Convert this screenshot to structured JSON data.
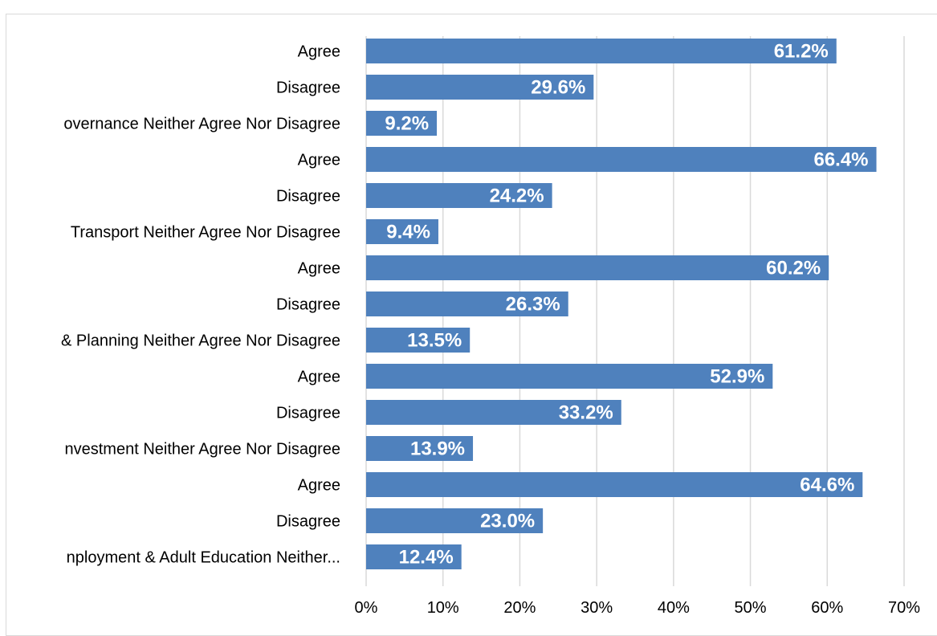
{
  "chart_data": {
    "type": "bar",
    "orientation": "horizontal",
    "categories": [
      "Agree",
      "Disagree",
      "overnance Neither Agree Nor Disagree",
      "Agree",
      "Disagree",
      "Transport Neither Agree Nor Disagree",
      "Agree",
      "Disagree",
      "& Planning Neither Agree Nor Disagree",
      "Agree",
      "Disagree",
      "nvestment Neither Agree Nor Disagree",
      "Agree",
      "Disagree",
      "nployment & Adult Education Neither..."
    ],
    "values": [
      61.2,
      29.6,
      9.2,
      66.4,
      24.2,
      9.4,
      60.2,
      26.3,
      13.5,
      52.9,
      33.2,
      13.9,
      64.6,
      23.0,
      12.4
    ],
    "value_labels": [
      "61.2%",
      "29.6%",
      "9.2%",
      "66.4%",
      "24.2%",
      "9.4%",
      "60.2%",
      "26.3%",
      "13.5%",
      "52.9%",
      "33.2%",
      "13.9%",
      "64.6%",
      "23.0%",
      "12.4%"
    ],
    "x_ticks": [
      "0%",
      "10%",
      "20%",
      "30%",
      "40%",
      "50%",
      "60%",
      "70%"
    ],
    "xlim": [
      0,
      70
    ],
    "grid": true,
    "bar_color": "#4f81bd",
    "grid_color": "#d9d9d9"
  }
}
